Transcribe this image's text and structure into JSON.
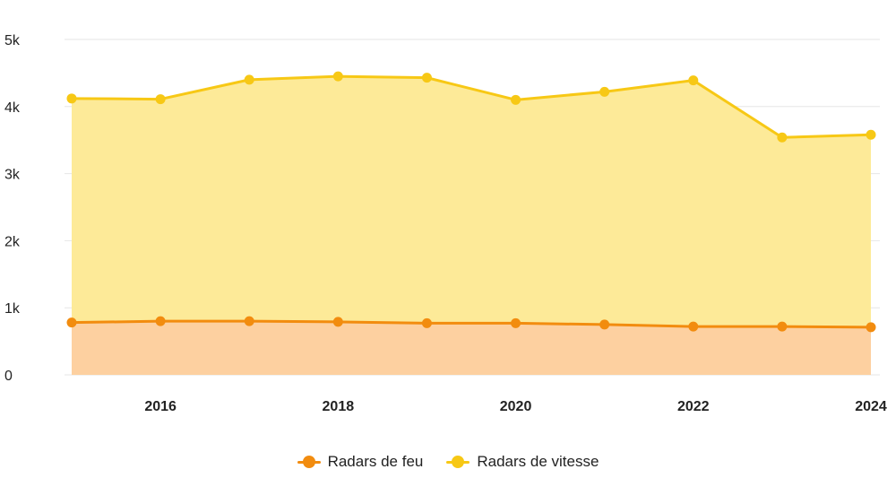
{
  "chart_data": {
    "type": "area",
    "stacked": true,
    "x": [
      2015,
      2016,
      2017,
      2018,
      2019,
      2020,
      2021,
      2022,
      2023,
      2024
    ],
    "x_tick_labels": [
      "2016",
      "2018",
      "2020",
      "2022",
      "2024"
    ],
    "x_tick_values": [
      2016,
      2018,
      2020,
      2022,
      2024
    ],
    "y_tick_labels": [
      "0",
      "1k",
      "2k",
      "3k",
      "4k",
      "5k"
    ],
    "y_tick_values": [
      0,
      1000,
      2000,
      3000,
      4000,
      5000
    ],
    "ylim": [
      0,
      5000
    ],
    "grid": true,
    "legend_position": "bottom",
    "series": [
      {
        "name": "Radars de feu",
        "values": [
          780,
          800,
          800,
          790,
          770,
          770,
          750,
          720,
          720,
          710
        ],
        "color": "#f28c0f",
        "fill": "#fdd0a0"
      },
      {
        "name": "Radars de vitesse",
        "values": [
          3340,
          3310,
          3600,
          3660,
          3660,
          3330,
          3470,
          3670,
          2820,
          2870
        ],
        "color": "#f7c815",
        "fill": "#fdea98"
      }
    ]
  }
}
